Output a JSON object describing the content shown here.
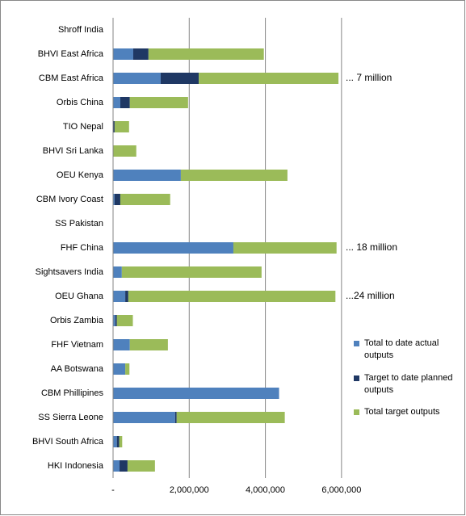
{
  "chart_data": {
    "type": "stacked-bar-horizontal",
    "categories": [
      "Shroff India",
      "BHVI East Africa",
      "CBM East Africa",
      "Orbis China",
      "TIO Nepal",
      "BHVI Sri Lanka",
      "OEU Kenya",
      "CBM Ivory Coast",
      "SS Pakistan",
      "FHF China",
      "Sightsavers India",
      "OEU Ghana",
      "Orbis Zambia",
      "FHF Vietnam",
      "AA Botswana",
      "CBM Phillipines",
      "SS Sierra Leone",
      "BHVI South Africa",
      "HKI Indonesia"
    ],
    "series": [
      {
        "name": "Total to date actual outputs",
        "color": "#4f81bd",
        "values": [
          0,
          530000,
          1250000,
          190000,
          0,
          0,
          1780000,
          40000,
          0,
          3160000,
          230000,
          320000,
          60000,
          440000,
          320000,
          4360000,
          1630000,
          100000,
          170000
        ]
      },
      {
        "name": "Target to date planned outputs",
        "color": "#1f3864",
        "values": [
          0,
          400000,
          1000000,
          250000,
          40000,
          0,
          0,
          150000,
          0,
          0,
          0,
          80000,
          40000,
          0,
          0,
          0,
          40000,
          60000,
          210000
        ]
      },
      {
        "name": "Total target outputs",
        "color": "#9bbb59",
        "values": [
          0,
          3030000,
          3670000,
          1530000,
          380000,
          610000,
          2800000,
          1310000,
          0,
          2710000,
          3670000,
          5440000,
          420000,
          1000000,
          110000,
          0,
          2840000,
          80000,
          720000
        ]
      }
    ],
    "annotations": [
      null,
      null,
      "... 7 million",
      null,
      null,
      null,
      null,
      null,
      null,
      "... 18 million",
      null,
      "...24 million",
      null,
      null,
      null,
      null,
      null,
      null,
      null
    ],
    "xlim": [
      0,
      7000000
    ],
    "xticks": [
      {
        "value": 0,
        "label": "-"
      },
      {
        "value": 2000000,
        "label": "2,000,000"
      },
      {
        "value": 4000000,
        "label": "4,000,000"
      },
      {
        "value": 6000000,
        "label": "6,000,000"
      }
    ],
    "grid": true
  }
}
